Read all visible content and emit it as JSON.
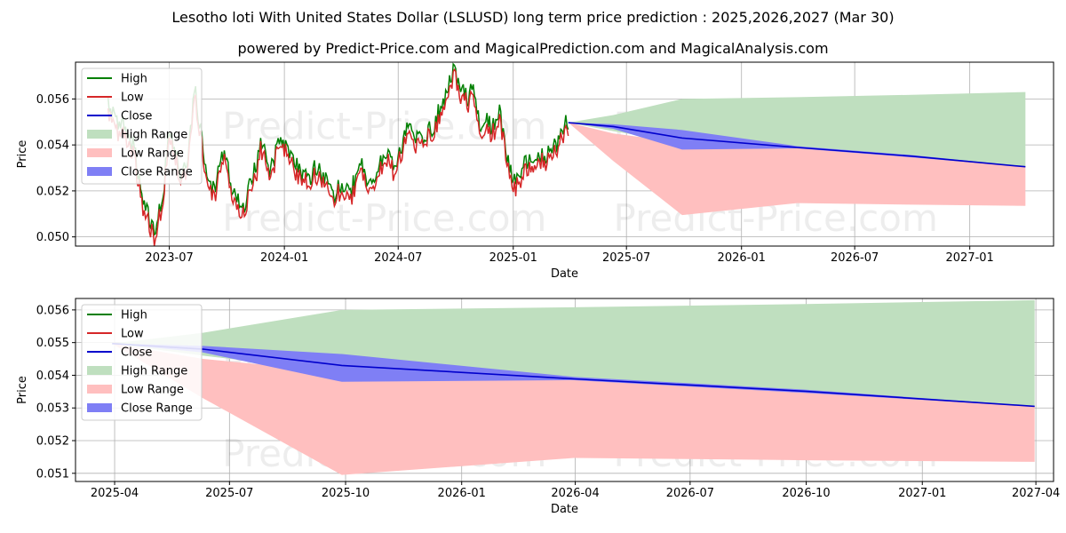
{
  "title": "Lesotho loti With United States Dollar (LSLUSD) long term price prediction : 2025,2026,2027 (Mar 30)",
  "subtitle": "powered by Predict-Price.com and MagicalPrediction.com and MagicalAnalysis.com",
  "watermark": "Predict-Price.com",
  "colors": {
    "high": "#007f00",
    "low": "#d62728",
    "close": "#0000cc",
    "high_range": "#bfdfbf",
    "low_range": "#ffbfbf",
    "close_range": "#7f7ff5"
  },
  "chart_data": [
    {
      "type": "line",
      "panel": "full",
      "xlabel": "Date",
      "ylabel": "Price",
      "xlim": [
        "2023-02-01",
        "2027-05-15"
      ],
      "ylim": [
        0.0496,
        0.0576
      ],
      "xticks": [
        "2023-07",
        "2024-01",
        "2024-07",
        "2025-01",
        "2025-07",
        "2026-01",
        "2026-07",
        "2027-01"
      ],
      "yticks": [
        "0.050",
        "0.052",
        "0.054",
        "0.056"
      ],
      "legend": [
        "High",
        "Low",
        "Close",
        "High Range",
        "Low Range",
        "Close Range"
      ],
      "legend_position": "upper-left",
      "history_anchors": [
        [
          "2023-03-25",
          0.0555
        ],
        [
          "2023-04-10",
          0.0548
        ],
        [
          "2023-04-25",
          0.0543
        ],
        [
          "2023-05-05",
          0.0538
        ],
        [
          "2023-05-12",
          0.0525
        ],
        [
          "2023-05-20",
          0.0512
        ],
        [
          "2023-06-01",
          0.0505
        ],
        [
          "2023-06-08",
          0.0501
        ],
        [
          "2023-06-20",
          0.0515
        ],
        [
          "2023-06-30",
          0.054
        ],
        [
          "2023-07-10",
          0.0538
        ],
        [
          "2023-07-20",
          0.0525
        ],
        [
          "2023-07-28",
          0.053
        ],
        [
          "2023-08-05",
          0.0547
        ],
        [
          "2023-08-12",
          0.0562
        ],
        [
          "2023-08-20",
          0.0545
        ],
        [
          "2023-08-30",
          0.0525
        ],
        [
          "2023-09-10",
          0.0518
        ],
        [
          "2023-09-25",
          0.0535
        ],
        [
          "2023-10-10",
          0.052
        ],
        [
          "2023-10-25",
          0.0512
        ],
        [
          "2023-11-10",
          0.052
        ],
        [
          "2023-11-25",
          0.054
        ],
        [
          "2023-12-10",
          0.0527
        ],
        [
          "2023-12-25",
          0.0542
        ],
        [
          "2024-01-05",
          0.0536
        ],
        [
          "2024-01-20",
          0.053
        ],
        [
          "2024-02-05",
          0.0524
        ],
        [
          "2024-02-20",
          0.0528
        ],
        [
          "2024-03-05",
          0.0522
        ],
        [
          "2024-03-20",
          0.0518
        ],
        [
          "2024-04-05",
          0.0522
        ],
        [
          "2024-04-15",
          0.0515
        ],
        [
          "2024-04-30",
          0.053
        ],
        [
          "2024-05-15",
          0.052
        ],
        [
          "2024-05-25",
          0.0525
        ],
        [
          "2024-06-10",
          0.0535
        ],
        [
          "2024-06-25",
          0.0528
        ],
        [
          "2024-07-05",
          0.0538
        ],
        [
          "2024-07-20",
          0.0545
        ],
        [
          "2024-08-05",
          0.0538
        ],
        [
          "2024-08-20",
          0.0545
        ],
        [
          "2024-09-01",
          0.055
        ],
        [
          "2024-09-10",
          0.0555
        ],
        [
          "2024-09-20",
          0.0563
        ],
        [
          "2024-09-28",
          0.0572
        ],
        [
          "2024-10-05",
          0.0563
        ],
        [
          "2024-10-20",
          0.0559
        ],
        [
          "2024-11-01",
          0.0562
        ],
        [
          "2024-11-10",
          0.0545
        ],
        [
          "2024-11-20",
          0.0548
        ],
        [
          "2024-12-01",
          0.0546
        ],
        [
          "2024-12-10",
          0.0553
        ],
        [
          "2024-12-20",
          0.0536
        ],
        [
          "2024-12-31",
          0.0525
        ],
        [
          "2025-01-10",
          0.0522
        ],
        [
          "2025-01-20",
          0.0532
        ],
        [
          "2025-01-31",
          0.0528
        ],
        [
          "2025-02-10",
          0.0535
        ],
        [
          "2025-02-20",
          0.0532
        ],
        [
          "2025-03-05",
          0.0538
        ],
        [
          "2025-03-15",
          0.0541
        ],
        [
          "2025-03-25",
          0.0545
        ],
        [
          "2025-03-30",
          0.0549
        ]
      ],
      "history_end": "2025-03-30"
    },
    {
      "type": "line",
      "panel": "forecast",
      "xlabel": "Date",
      "ylabel": "Price",
      "xlim": [
        "2025-03-01",
        "2027-04-15"
      ],
      "ylim": [
        0.05075,
        0.05635
      ],
      "xticks": [
        "2025-04",
        "2025-07",
        "2025-10",
        "2026-01",
        "2026-04",
        "2026-07",
        "2026-10",
        "2027-01",
        "2027-04"
      ],
      "yticks": [
        "0.051",
        "0.052",
        "0.053",
        "0.054",
        "0.055",
        "0.056"
      ],
      "legend": [
        "High",
        "Low",
        "Close",
        "High Range",
        "Low Range",
        "Close Range"
      ],
      "legend_position": "upper-left",
      "forecast": {
        "dates": [
          "2025-03-30",
          "2025-06-10",
          "2025-09-28",
          "2026-03-31",
          "2026-09-30",
          "2027-03-31"
        ],
        "close": [
          0.05497,
          0.0548,
          0.0543,
          0.05389,
          0.05351,
          0.05305
        ],
        "close_upper": [
          0.05497,
          0.0549,
          0.05465,
          0.05395,
          0.05356,
          0.05306
        ],
        "close_lower": [
          0.05497,
          0.0547,
          0.0538,
          0.05385,
          0.05346,
          0.05304
        ],
        "high_upper": [
          0.05497,
          0.0553,
          0.056,
          0.05608,
          0.05618,
          0.0563
        ],
        "high_lower": [
          0.05497,
          0.0546,
          0.0541,
          0.0539,
          0.0535,
          0.05305
        ],
        "low_upper": [
          0.05497,
          0.0545,
          0.0541,
          0.0539,
          0.0535,
          0.05305
        ],
        "low_lower": [
          0.05497,
          0.0533,
          0.05095,
          0.05147,
          0.0514,
          0.05135
        ]
      }
    }
  ]
}
